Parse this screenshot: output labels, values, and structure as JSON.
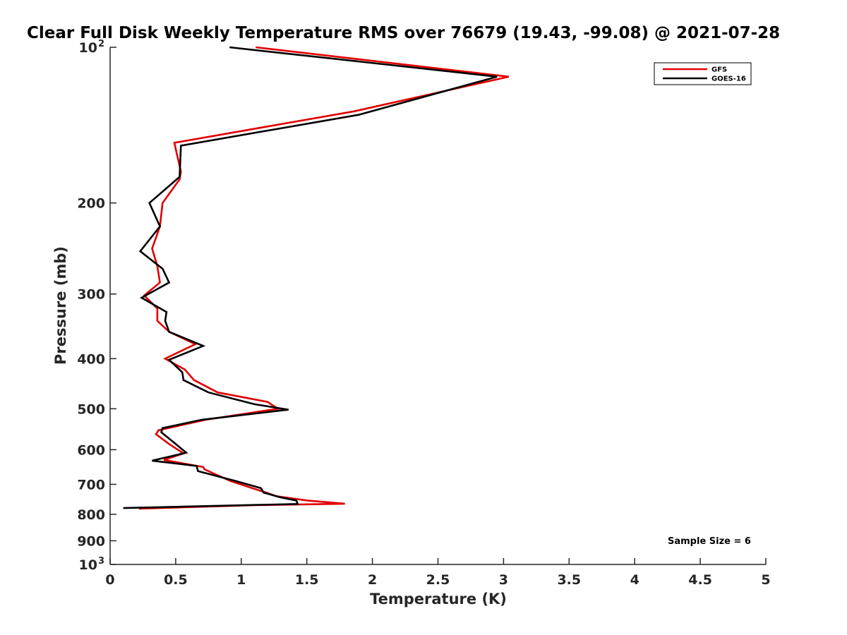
{
  "chart_data": {
    "type": "line",
    "title": "Clear Full Disk Weekly Temperature RMS over 76679 (19.43, -99.08) @ 2021-07-28",
    "xlabel": "Temperature (K)",
    "ylabel": "Pressure (mb)",
    "xlim": [
      0,
      5
    ],
    "ylim": [
      100,
      1000
    ],
    "y_scale": "log",
    "y_reversed": true,
    "grid": false,
    "legend_position": "top-right",
    "x_ticks": [
      0,
      0.5,
      1,
      1.5,
      2,
      2.5,
      3,
      3.5,
      4,
      4.5,
      5
    ],
    "x_tick_labels": [
      "0",
      "0.5",
      "1",
      "1.5",
      "2",
      "2.5",
      "3",
      "3.5",
      "4",
      "4.5",
      "5"
    ],
    "y_ticks": [
      {
        "value": 100,
        "base": "10",
        "exp": "2"
      },
      {
        "value": 200,
        "label": "200"
      },
      {
        "value": 300,
        "label": "300"
      },
      {
        "value": 400,
        "label": "400"
      },
      {
        "value": 500,
        "label": "500"
      },
      {
        "value": 600,
        "label": "600"
      },
      {
        "value": 700,
        "label": "700"
      },
      {
        "value": 800,
        "label": "800"
      },
      {
        "value": 900,
        "label": "900"
      },
      {
        "value": 1000,
        "base": "10",
        "exp": "3"
      }
    ],
    "annotation": "Sample Size = 6",
    "series": [
      {
        "name": "GFS",
        "color": "#e00000",
        "points": [
          [
            1.11,
            100
          ],
          [
            3.04,
            114
          ],
          [
            1.86,
            133
          ],
          [
            0.49,
            153
          ],
          [
            0.54,
            174
          ],
          [
            0.53,
            180
          ],
          [
            0.4,
            200
          ],
          [
            0.38,
            222
          ],
          [
            0.32,
            245
          ],
          [
            0.36,
            265
          ],
          [
            0.38,
            285
          ],
          [
            0.26,
            302
          ],
          [
            0.36,
            320
          ],
          [
            0.36,
            338
          ],
          [
            0.45,
            355
          ],
          [
            0.65,
            375
          ],
          [
            0.42,
            400
          ],
          [
            0.57,
            420
          ],
          [
            0.64,
            440
          ],
          [
            0.82,
            465
          ],
          [
            1.2,
            485
          ],
          [
            1.28,
            500
          ],
          [
            0.73,
            525
          ],
          [
            0.37,
            550
          ],
          [
            0.35,
            560
          ],
          [
            0.45,
            585
          ],
          [
            0.56,
            610
          ],
          [
            0.41,
            628
          ],
          [
            0.71,
            648
          ],
          [
            0.72,
            655
          ],
          [
            0.92,
            690
          ],
          [
            1.18,
            725
          ],
          [
            1.27,
            738
          ],
          [
            1.5,
            752
          ],
          [
            1.79,
            763
          ],
          [
            1.1,
            768
          ],
          [
            0.22,
            780
          ]
        ]
      },
      {
        "name": "GOES-16",
        "color": "#000000",
        "points": [
          [
            0.91,
            100
          ],
          [
            2.95,
            114
          ],
          [
            1.9,
            135
          ],
          [
            0.54,
            155
          ],
          [
            0.53,
            178
          ],
          [
            0.3,
            200
          ],
          [
            0.38,
            222
          ],
          [
            0.23,
            248
          ],
          [
            0.4,
            268
          ],
          [
            0.45,
            285
          ],
          [
            0.24,
            305
          ],
          [
            0.43,
            325
          ],
          [
            0.42,
            338
          ],
          [
            0.45,
            355
          ],
          [
            0.71,
            378
          ],
          [
            0.45,
            402
          ],
          [
            0.55,
            425
          ],
          [
            0.56,
            440
          ],
          [
            0.75,
            465
          ],
          [
            1.1,
            490
          ],
          [
            1.36,
            502
          ],
          [
            0.7,
            525
          ],
          [
            0.4,
            545
          ],
          [
            0.39,
            555
          ],
          [
            0.5,
            585
          ],
          [
            0.58,
            608
          ],
          [
            0.32,
            630
          ],
          [
            0.66,
            645
          ],
          [
            0.67,
            660
          ],
          [
            0.96,
            690
          ],
          [
            1.15,
            712
          ],
          [
            1.17,
            726
          ],
          [
            1.3,
            742
          ],
          [
            1.42,
            752
          ],
          [
            1.43,
            764
          ],
          [
            0.1,
            778
          ]
        ]
      }
    ]
  }
}
